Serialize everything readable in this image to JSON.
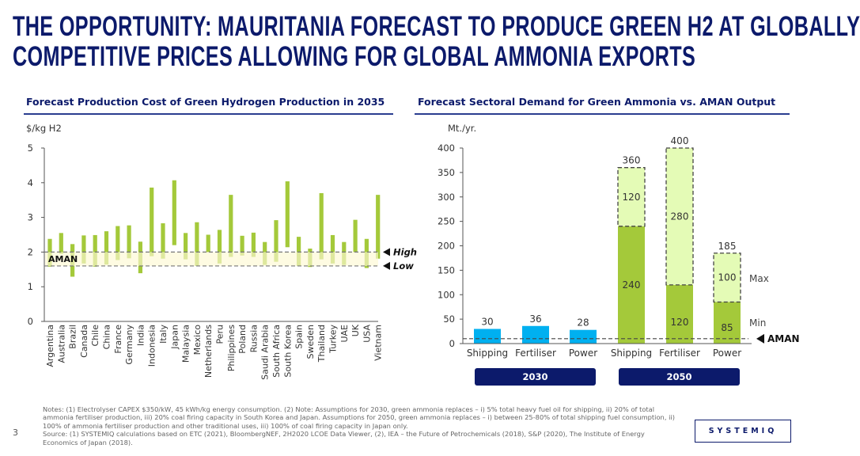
{
  "title_lines": [
    "THE OPPORTUNITY: MAURITANIA FORECAST TO PRODUCE GREEN H2 AT GLOBALLY",
    "COMPETITIVE PRICES ALLOWING FOR GLOBAL AMMONIA EXPORTS"
  ],
  "page_number": "3",
  "logo_text": "SYSTEMIQ",
  "notes": "Notes: (1) Electrolyser CAPEX $350/kW, 45 kWh/kg energy consumption. (2) Note: Assumptions for 2030, green ammonia replaces – i) 5% total heavy fuel oil for shipping, ii) 20% of total ammonia fertiliser production, iii) 20% coal firing capacity in South Korea and Japan. Assumptions for 2050, green ammonia replaces – i) between 25-80% of total shipping fuel consumption, ii) 100% of ammonia fertiliser production and other traditional uses, iii) 100% of coal firing capacity in Japan only.",
  "source": "Source: (1) SYSTEMIQ calculations based on ETC (2021), BloombergNEF, 2H2020 LCOE Data Viewer, (2), IEA – the Future of Petrochemicals (2018), S&P (2020), The Institute of Energy Economics of Japan (2018).",
  "colors": {
    "navy": "#0c1a6b",
    "green": "#a4c93a",
    "light_green": "#e4fbb6",
    "blue": "#00b0f0",
    "band": "#fdf9d2"
  },
  "chart_data": [
    {
      "type": "bar",
      "subtype": "floating-range",
      "title": "Forecast Production Cost of Green Hydrogen Production in 2035",
      "ylabel": "$/kg H2",
      "ylim": [
        0,
        5
      ],
      "yticks": [
        "0",
        "1",
        "2",
        "3",
        "4",
        "5"
      ],
      "categories": [
        "Argentina",
        "Australia",
        "Brazil",
        "Canada",
        "Chile",
        "China",
        "France",
        "Germany",
        "India",
        "Indonesia",
        "Italy",
        "Japan",
        "Malaysia",
        "Mexico",
        "Netherlands",
        "Peru",
        "Philippines",
        "Poland",
        "Russia",
        "Saudi Arabia",
        "South Africa",
        "South Korea",
        "Spain",
        "Sweden",
        "Thailand",
        "Turkey",
        "UAE",
        "UK",
        "USA",
        "Vietnam"
      ],
      "low": [
        1.58,
        1.95,
        1.29,
        1.67,
        1.58,
        1.64,
        1.77,
        1.82,
        1.39,
        1.88,
        1.81,
        2.2,
        1.79,
        1.6,
        2.0,
        1.67,
        1.86,
        1.9,
        1.86,
        1.63,
        1.72,
        2.14,
        1.6,
        1.57,
        1.79,
        1.67,
        1.63,
        2.0,
        1.54,
        1.81
      ],
      "high": [
        2.38,
        2.55,
        2.23,
        2.48,
        2.49,
        2.6,
        2.75,
        2.77,
        2.3,
        3.86,
        2.83,
        4.07,
        2.55,
        2.86,
        2.5,
        2.64,
        3.65,
        2.47,
        2.56,
        2.29,
        2.92,
        4.04,
        2.44,
        2.1,
        3.7,
        2.49,
        2.29,
        2.93,
        2.38,
        3.65
      ],
      "aman_band": {
        "label": "AMAN",
        "low": 1.6,
        "high": 2.0,
        "high_label": "High",
        "low_label": "Low"
      }
    },
    {
      "type": "bar",
      "subtype": "stacked",
      "title": "Forecast Sectoral Demand for Green Ammonia vs. AMAN Output",
      "ylabel": "Mt./yr.",
      "ylim": [
        0,
        400
      ],
      "yticks": [
        "0",
        "50",
        "100",
        "150",
        "200",
        "250",
        "300",
        "350",
        "400"
      ],
      "categories": [
        "Shipping",
        "Fertiliser",
        "Power",
        "Shipping",
        "Fertiliser",
        "Power"
      ],
      "groups": [
        {
          "label": "2030",
          "categories": [
            0,
            1,
            2
          ]
        },
        {
          "label": "2050",
          "categories": [
            3,
            4,
            5
          ]
        }
      ],
      "series": [
        {
          "name": "Min",
          "values": [
            30,
            36,
            28,
            240,
            120,
            85
          ]
        },
        {
          "name": "Max",
          "values": [
            null,
            null,
            null,
            120,
            280,
            100
          ]
        }
      ],
      "totals": [
        "30",
        "36",
        "28",
        "360",
        "400",
        "185"
      ],
      "aman_line": {
        "label": "AMAN",
        "value": 10
      }
    }
  ]
}
